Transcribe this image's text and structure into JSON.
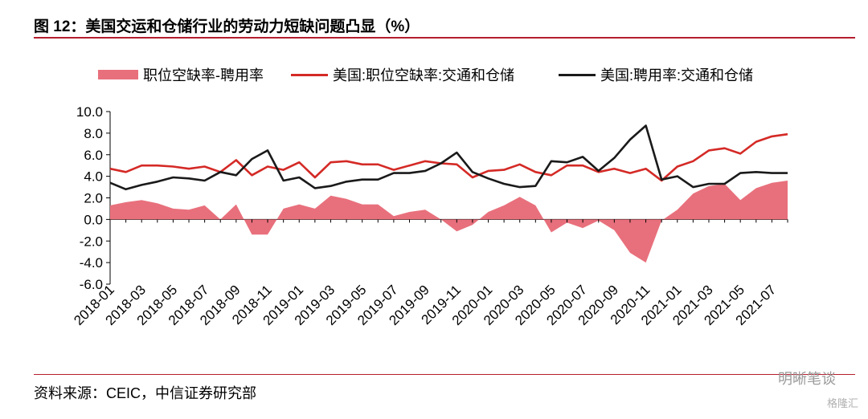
{
  "title": "图 12：美国交运和仓储行业的劳动力短缺问题凸显（%）",
  "source": "资料来源：CEIC，中信证券研究部",
  "watermark": "明晰笔谈",
  "watermark2": "格隆汇",
  "colors": {
    "area": "#e8707c",
    "red_line": "#d42a26",
    "black_line": "#1a1a1a",
    "rule": "#b61e2e"
  },
  "chart_data": {
    "type": "line",
    "legend_position": "top",
    "ylim": [
      -6.0,
      10.0
    ],
    "yticks": [
      "10.0",
      "8.0",
      "6.0",
      "4.0",
      "2.0",
      "0.0",
      "-2.0",
      "-4.0",
      "-6.0"
    ],
    "x": [
      "2018-01",
      "2018-02",
      "2018-03",
      "2018-04",
      "2018-05",
      "2018-06",
      "2018-07",
      "2018-08",
      "2018-09",
      "2018-10",
      "2018-11",
      "2018-12",
      "2019-01",
      "2019-02",
      "2019-03",
      "2019-04",
      "2019-05",
      "2019-06",
      "2019-07",
      "2019-08",
      "2019-09",
      "2019-10",
      "2019-11",
      "2019-12",
      "2020-01",
      "2020-02",
      "2020-03",
      "2020-04",
      "2020-05",
      "2020-06",
      "2020-07",
      "2020-08",
      "2020-09",
      "2020-10",
      "2020-11",
      "2020-12",
      "2021-01",
      "2021-02",
      "2021-03",
      "2021-04",
      "2021-05",
      "2021-06",
      "2021-07",
      "2021-08"
    ],
    "xtick_labels": [
      "2018-01",
      "2018-03",
      "2018-05",
      "2018-07",
      "2018-09",
      "2018-11",
      "2019-01",
      "2019-03",
      "2019-05",
      "2019-07",
      "2019-09",
      "2019-11",
      "2020-01",
      "2020-03",
      "2020-05",
      "2020-07",
      "2020-09",
      "2020-11",
      "2021-01",
      "2021-03",
      "2021-05",
      "2021-07"
    ],
    "series": [
      {
        "name": "职位空缺率-聘用率",
        "kind": "area",
        "values": [
          1.3,
          1.6,
          1.8,
          1.5,
          1.0,
          0.9,
          1.3,
          0.0,
          1.4,
          -1.4,
          -1.4,
          1.0,
          1.4,
          1.0,
          2.2,
          1.9,
          1.4,
          1.4,
          0.3,
          0.7,
          0.9,
          0.0,
          -1.1,
          -0.5,
          0.7,
          1.3,
          2.1,
          1.3,
          -1.2,
          -0.3,
          -0.8,
          -0.1,
          -1.0,
          -3.1,
          -4.0,
          -0.1,
          0.9,
          2.4,
          3.1,
          3.3,
          1.8,
          2.9,
          3.4,
          3.6
        ]
      },
      {
        "name": "美国:职位空缺率:交通和仓储",
        "kind": "line",
        "values": [
          4.7,
          4.4,
          5.0,
          5.0,
          4.9,
          4.7,
          4.9,
          4.4,
          5.5,
          4.1,
          4.9,
          4.6,
          5.3,
          3.9,
          5.3,
          5.4,
          5.1,
          5.1,
          4.6,
          5.0,
          5.4,
          5.2,
          5.1,
          3.9,
          4.5,
          4.6,
          5.1,
          4.4,
          4.1,
          5.0,
          5.0,
          4.4,
          4.7,
          4.3,
          4.7,
          3.6,
          4.9,
          5.4,
          6.4,
          6.6,
          6.1,
          7.2,
          7.7,
          7.9
        ]
      },
      {
        "name": "美国:聘用率:交通和仓储",
        "kind": "line",
        "values": [
          3.4,
          2.8,
          3.2,
          3.5,
          3.9,
          3.8,
          3.6,
          4.4,
          4.1,
          5.6,
          6.4,
          3.6,
          3.9,
          2.9,
          3.1,
          3.5,
          3.7,
          3.7,
          4.3,
          4.3,
          4.5,
          5.2,
          6.2,
          4.4,
          3.8,
          3.3,
          3.0,
          3.1,
          5.4,
          5.3,
          5.8,
          4.5,
          5.7,
          7.4,
          8.7,
          3.7,
          4.0,
          3.0,
          3.3,
          3.3,
          4.3,
          4.4,
          4.3,
          4.3
        ]
      }
    ]
  }
}
